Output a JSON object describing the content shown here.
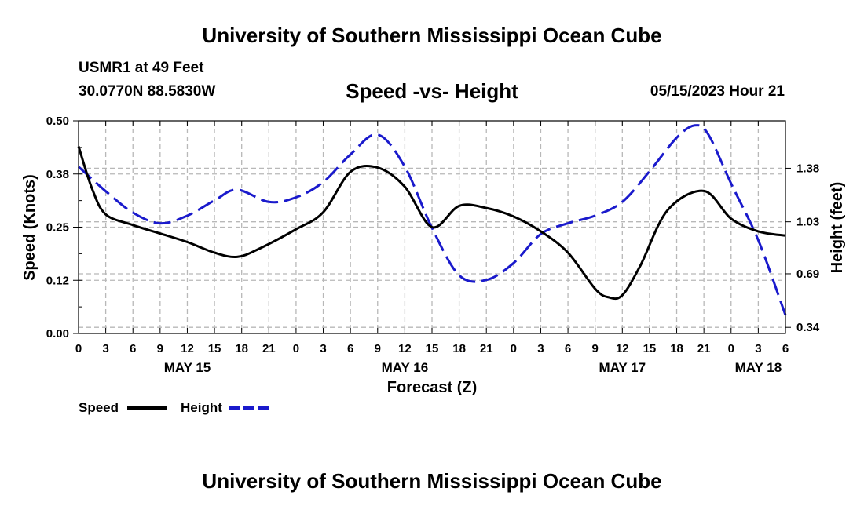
{
  "page": {
    "title": "University of Southern Mississippi Ocean Cube",
    "footer_title": "University of Southern Mississippi Ocean Cube",
    "station": "USMR1 at 49 Feet",
    "coordinates": "30.0770N  88.5830W",
    "datetime": "05/15/2023 Hour 21"
  },
  "colors": {
    "speed": "#000000",
    "height": "#1a1acc",
    "grid": "#b8b8b8",
    "axis": "#000000"
  },
  "chart_data": {
    "type": "line",
    "title": "Speed -vs- Height",
    "xlabel": "Forecast (Z)",
    "ylabel": "Speed (Knots)",
    "y2label": "Height (feet)",
    "x_range_hours": [
      0,
      78
    ],
    "ylim": [
      0,
      0.5
    ],
    "yticks": [
      "0.50",
      "0.38",
      "0.25",
      "0.12",
      "0.00"
    ],
    "yticks_values": [
      0.5,
      0.375,
      0.25,
      0.125,
      0.0
    ],
    "y2lim": [
      0.3,
      1.69
    ],
    "y2ticks": [
      "1.38",
      "1.03",
      "0.69",
      "0.34"
    ],
    "y2ticks_values": [
      1.38,
      1.03,
      0.69,
      0.34
    ],
    "x_ticks": [
      "0",
      "3",
      "6",
      "9",
      "12",
      "15",
      "18",
      "21",
      "0",
      "3",
      "6",
      "9",
      "12",
      "15",
      "18",
      "21",
      "0",
      "3",
      "6",
      "9",
      "12",
      "15",
      "18",
      "21",
      "0",
      "3",
      "6"
    ],
    "date_labels": [
      {
        "label": "MAY 15",
        "hour": 12
      },
      {
        "label": "MAY 16",
        "hour": 36
      },
      {
        "label": "MAY 17",
        "hour": 60
      },
      {
        "label": "MAY 18",
        "hour": 75
      }
    ],
    "grid": true,
    "legend": "bottom-left",
    "series": [
      {
        "name": "Speed",
        "axis": "left",
        "style": "solid",
        "x": [
          0,
          1.5,
          3,
          6,
          9,
          12,
          15,
          17.5,
          20,
          24,
          27,
          30,
          33,
          36,
          39,
          42,
          45,
          48,
          51,
          54,
          57,
          58.5,
          60,
          62,
          65,
          69,
          72,
          75,
          78
        ],
        "y": [
          0.44,
          0.34,
          0.28,
          0.255,
          0.235,
          0.215,
          0.19,
          0.18,
          0.2,
          0.245,
          0.285,
          0.38,
          0.39,
          0.345,
          0.25,
          0.3,
          0.295,
          0.275,
          0.24,
          0.19,
          0.105,
          0.085,
          0.09,
          0.16,
          0.29,
          0.335,
          0.27,
          0.24,
          0.23
        ]
      },
      {
        "name": "Height",
        "axis": "right",
        "style": "dashed",
        "x": [
          0,
          3,
          6,
          9,
          12,
          15,
          17.5,
          21,
          24,
          27,
          30,
          33,
          36,
          39,
          42,
          45,
          48,
          51,
          54,
          57,
          60,
          63,
          66,
          68,
          69.5,
          72,
          75,
          78
        ],
        "y": [
          1.39,
          1.23,
          1.09,
          1.02,
          1.07,
          1.17,
          1.24,
          1.16,
          1.19,
          1.29,
          1.47,
          1.6,
          1.39,
          0.99,
          0.68,
          0.65,
          0.76,
          0.95,
          1.02,
          1.07,
          1.16,
          1.36,
          1.58,
          1.66,
          1.6,
          1.28,
          0.91,
          0.42
        ]
      }
    ]
  }
}
